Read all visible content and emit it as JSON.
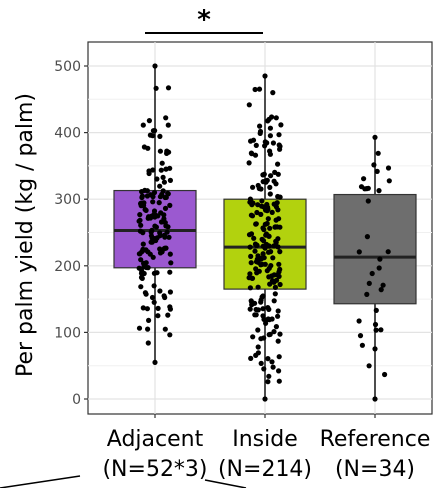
{
  "chart_data": {
    "type": "box",
    "ylabel": "Per palm yield (kg / palm)",
    "ylim": [
      0,
      520
    ],
    "yticks": [
      0,
      100,
      200,
      300,
      400,
      500
    ],
    "grid": true,
    "significance": {
      "label": "*",
      "between": [
        "Adjacent",
        "Inside"
      ]
    },
    "categories": [
      {
        "name": "Adjacent",
        "n_label": "(N=52*3)",
        "color": "#9b59d0",
        "min": 55,
        "q1": 197,
        "median": 253,
        "q3": 313,
        "max": 500,
        "n_points": 156
      },
      {
        "name": "Inside",
        "n_label": "(N=214)",
        "color": "#b2d20e",
        "min": 0,
        "q1": 165,
        "median": 228,
        "q3": 300,
        "max": 485,
        "n_points": 214
      },
      {
        "name": "Reference",
        "n_label": "(N=34)",
        "color": "#6e6e6e",
        "min": 0,
        "q1": 143,
        "median": 213,
        "q3": 307,
        "max": 393,
        "n_points": 34
      }
    ]
  }
}
